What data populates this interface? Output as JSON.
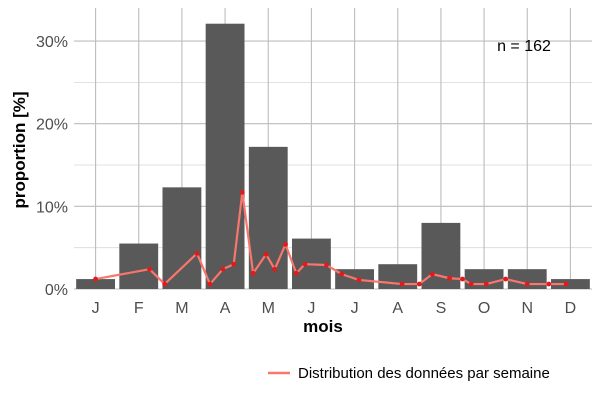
{
  "chart_data": {
    "type": "bar",
    "categories": [
      "J",
      "F",
      "M",
      "A",
      "M",
      "J",
      "J",
      "A",
      "S",
      "O",
      "N",
      "D"
    ],
    "values": [
      1.2,
      5.5,
      12.3,
      32.1,
      17.2,
      6.1,
      2.4,
      3.0,
      8.0,
      2.4,
      2.4,
      1.2
    ],
    "xlabel": "mois",
    "ylabel": "proportion [%]",
    "ylim": [
      0,
      34
    ],
    "yticks": [
      0,
      10,
      20,
      30
    ],
    "ytick_labels": [
      "0%",
      "10%",
      "20%",
      "30%"
    ],
    "annotation": "n = 162",
    "grid": true,
    "bar_color": "#595959",
    "line_series": {
      "name": "Distribution des données par semaine",
      "color": "#f8766d",
      "point_color": "#e31a1c",
      "x": [
        0.5,
        1.75,
        2.1,
        2.85,
        3.15,
        3.45,
        3.7,
        3.9,
        4.15,
        4.45,
        4.65,
        4.9,
        5.15,
        5.35,
        5.85,
        6.2,
        6.6,
        7.6,
        8.0,
        8.3,
        8.7,
        9.0,
        9.2,
        9.55,
        10.0,
        10.5,
        11.0,
        11.4
      ],
      "y": [
        1.2,
        2.4,
        0.6,
        4.3,
        0.6,
        2.4,
        3.0,
        11.7,
        1.9,
        4.2,
        2.4,
        5.4,
        1.9,
        3.0,
        2.9,
        1.8,
        1.1,
        0.6,
        0.6,
        1.8,
        1.3,
        1.2,
        0.6,
        0.6,
        1.2,
        0.6,
        0.6,
        0.6
      ]
    }
  }
}
